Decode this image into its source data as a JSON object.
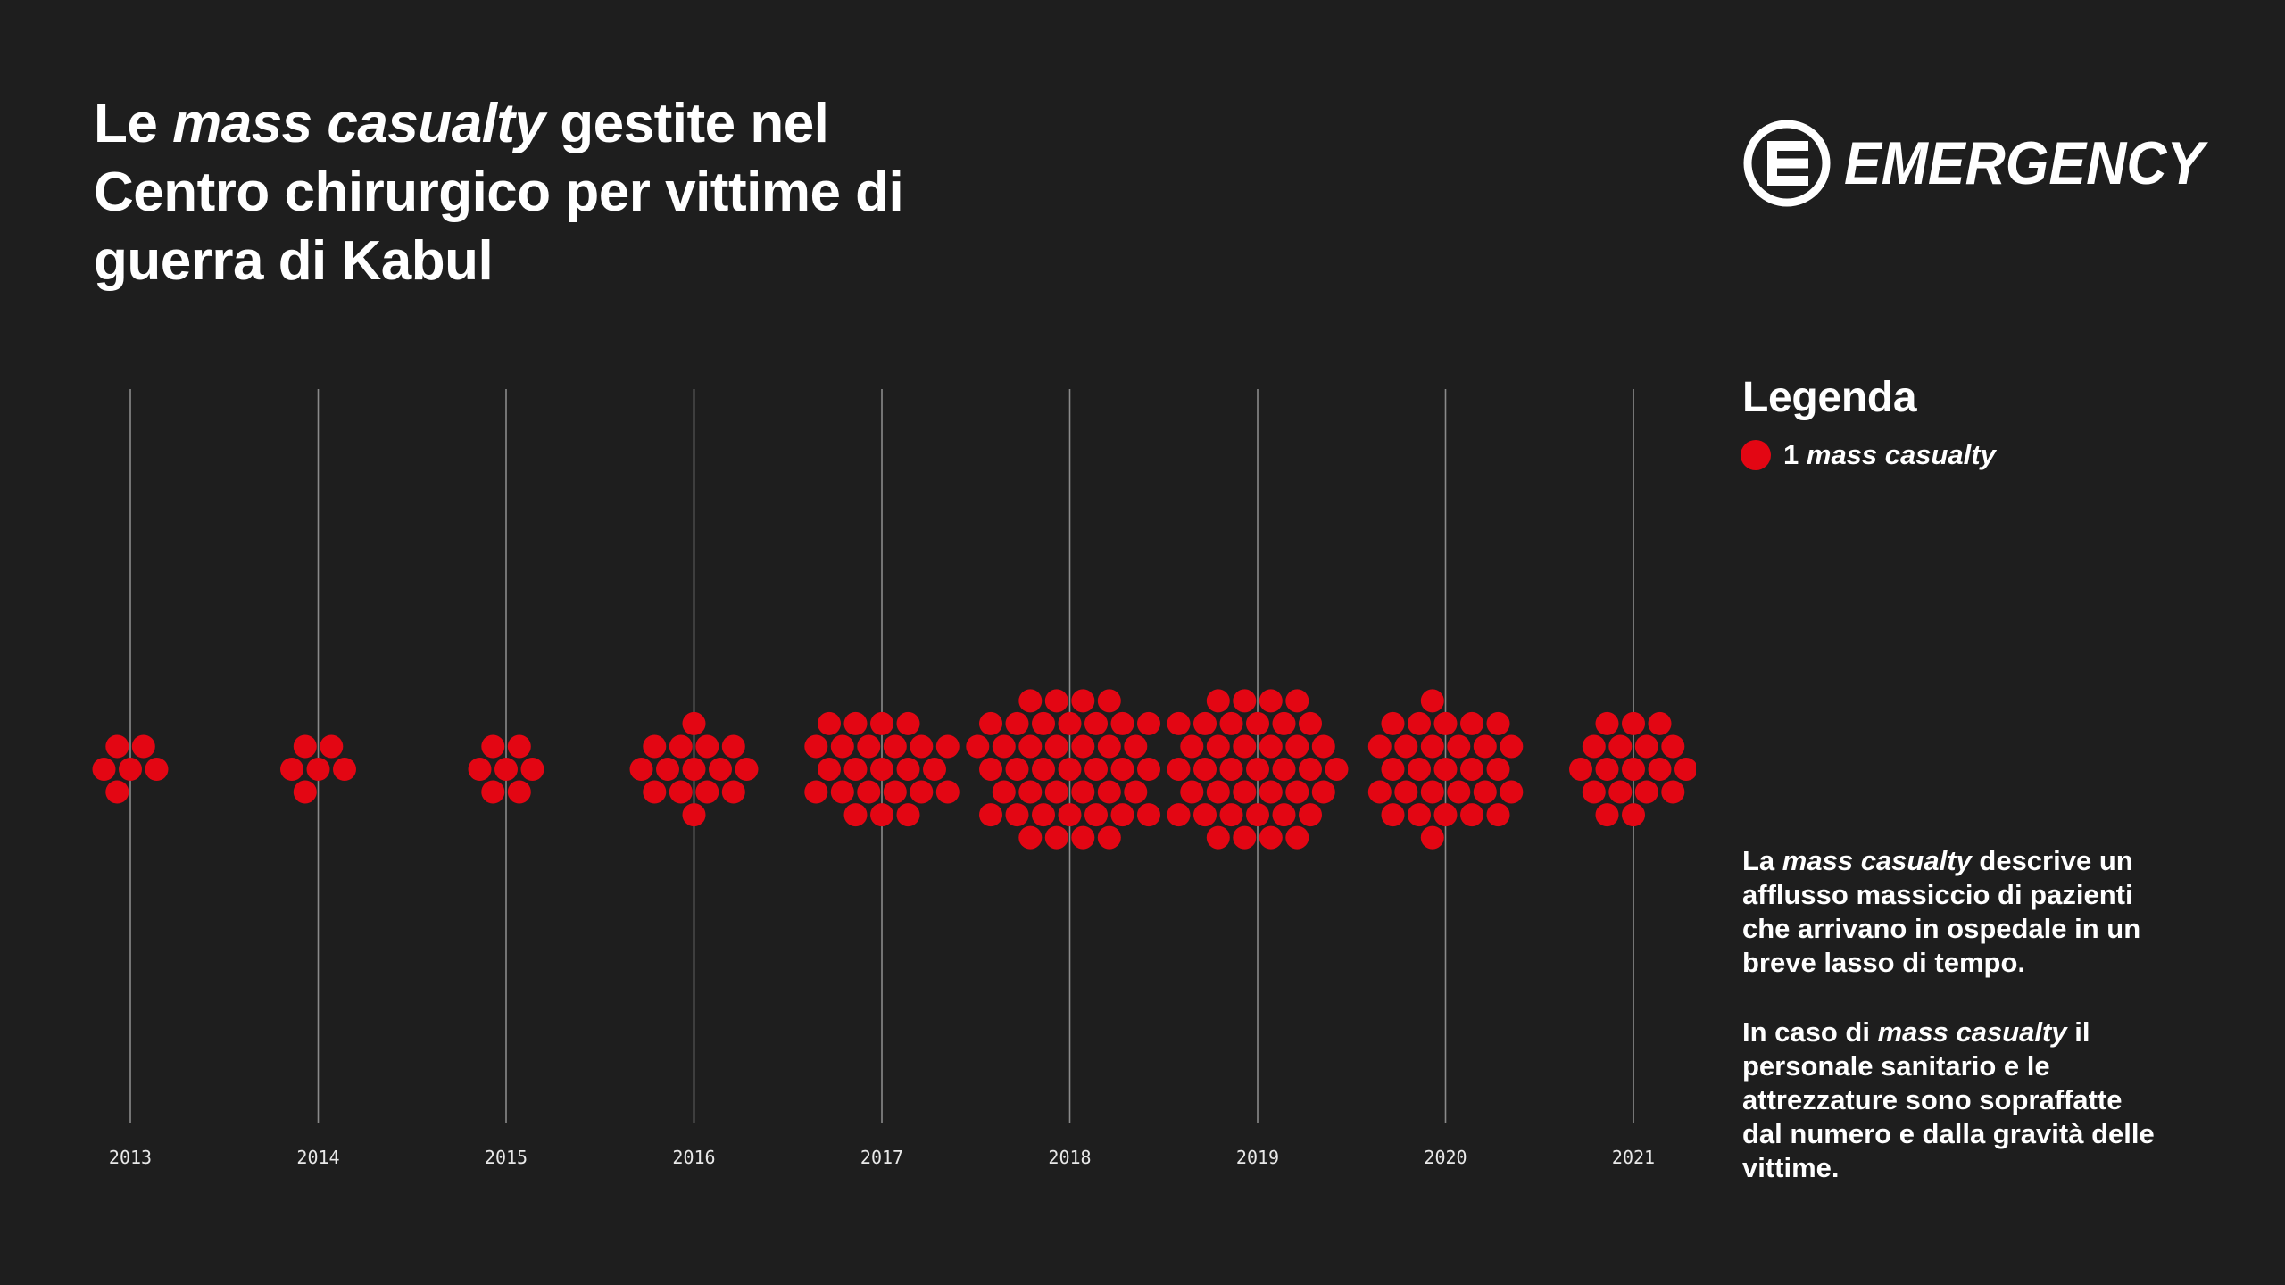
{
  "title": {
    "prefix": "Le ",
    "italic": "mass casualty",
    "suffix": " gestite nel Centro chirurgico per vittime di guerra di Kabul"
  },
  "logo": {
    "text": "EMERGENCY",
    "icon": "emergency-e-logo-icon"
  },
  "legend": {
    "title": "Legenda",
    "item_count": "1",
    "item_label": "mass casualty"
  },
  "description": {
    "p1_prefix": "La ",
    "p1_italic": "mass casualty",
    "p1_suffix": " descrive un afflusso massiccio di pazienti che arrivano in ospedale in un breve lasso di tempo.",
    "p2_prefix": "In caso di ",
    "p2_italic": "mass casualty",
    "p2_suffix": " il personale sanitario e le attrezzature sono sopraffatte dal numero e dalla gravità delle vittime."
  },
  "colors": {
    "background": "#1e1e1e",
    "dot": "#e30613",
    "axis_line": "#8a8a8a",
    "text": "#ffffff"
  },
  "chart_data": {
    "type": "scatter",
    "title": "",
    "xlabel": "",
    "ylabel": "",
    "grid": true,
    "legend_position": "right",
    "categories": [
      "2013",
      "2014",
      "2015",
      "2016",
      "2017",
      "2018",
      "2019",
      "2020",
      "2021"
    ],
    "series": [
      {
        "name": "1 mass casualty",
        "values": [
          6,
          6,
          7,
          15,
          24,
          42,
          39,
          29,
          18
        ]
      }
    ]
  }
}
